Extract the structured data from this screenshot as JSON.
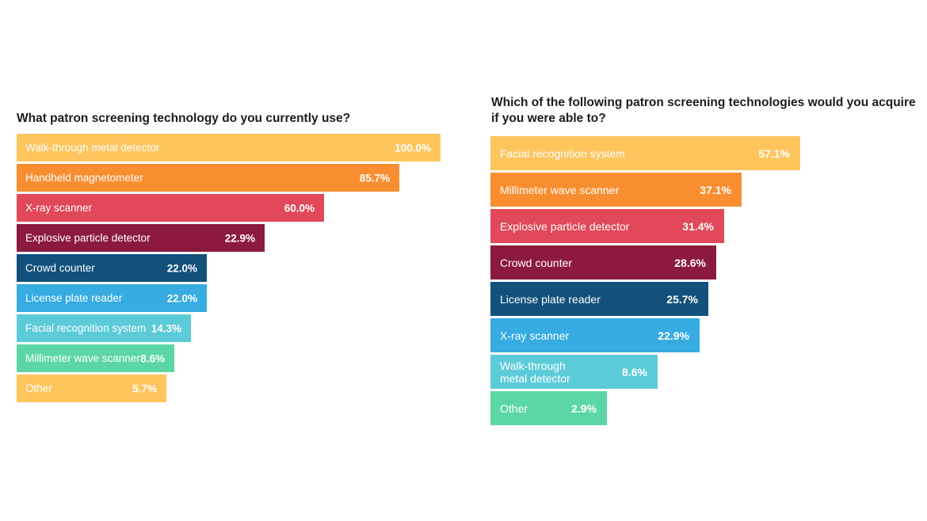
{
  "chart_data": [
    {
      "type": "bar",
      "orientation": "horizontal",
      "title": "What patron screening technology do you currently use?",
      "categories": [
        "Walk-through metal detector",
        "Handheld magnetometer",
        "X-ray scanner",
        "Explosive particle detector",
        "Crowd counter",
        "License plate reader",
        "Facial recognition system",
        "Millimeter wave scanner",
        "Other"
      ],
      "values": [
        100.0,
        85.7,
        60.0,
        22.9,
        22.0,
        22.0,
        14.3,
        8.6,
        5.7
      ],
      "value_labels": [
        "100.0%",
        "85.7%",
        "60.0%",
        "22.9%",
        "22.0%",
        "22.0%",
        "14.3%",
        "8.6%",
        "5.7%"
      ],
      "colors": [
        "#fdc55c",
        "#f98e30",
        "#e14859",
        "#8c1a3e",
        "#11517c",
        "#36ace2",
        "#5ccbd8",
        "#5dd6a6",
        "#fdc55c"
      ],
      "unit": "%",
      "xlabel": "",
      "ylabel": "",
      "grid": false,
      "legend": "none"
    },
    {
      "type": "bar",
      "orientation": "horizontal",
      "title": "Which of the following patron screening technologies would you acquire if you were able to?",
      "categories": [
        "Facial recognition system",
        "Millimeter wave scanner",
        "Explosive particle detector",
        "Crowd counter",
        "License plate reader",
        "X-ray scanner",
        "Walk-through metal detector",
        "Other"
      ],
      "category_display": [
        "Facial recognition system",
        "Millimeter wave scanner",
        "Explosive particle detector",
        "Crowd counter",
        "License plate reader",
        "X-ray scanner",
        "Walk-through\nmetal detector",
        "Other"
      ],
      "values": [
        57.1,
        37.1,
        31.4,
        28.6,
        25.7,
        22.9,
        8.6,
        2.9
      ],
      "value_labels": [
        "57.1%",
        "37.1%",
        "31.4%",
        "28.6%",
        "25.7%",
        "22.9%",
        "8.6%",
        "2.9%"
      ],
      "colors": [
        "#fdc55c",
        "#f98e30",
        "#e14859",
        "#8c1a3e",
        "#11517c",
        "#36ace2",
        "#5ccbd8",
        "#5dd6a6"
      ],
      "unit": "%",
      "xlabel": "",
      "ylabel": "",
      "grid": false,
      "legend": "none"
    }
  ]
}
